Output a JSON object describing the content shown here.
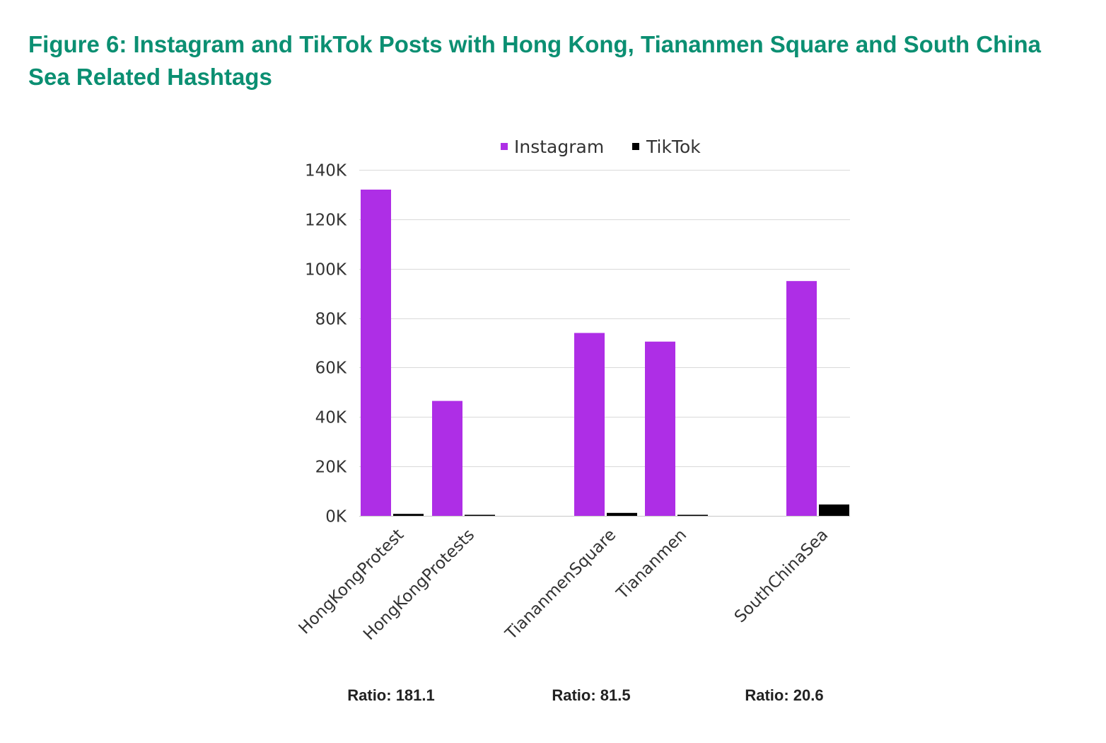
{
  "figure": {
    "title": "Figure 6: Instagram and TikTok Posts with Hong Kong, Tiananmen Square and South China Sea Related Hashtags"
  },
  "chart_data": {
    "type": "bar",
    "categories": [
      "HongKongProtest",
      "HongKongProtests",
      "TiananmenSquare",
      "Tiananmen",
      "SouthChinaSea"
    ],
    "series": [
      {
        "name": "Instagram",
        "color": "#ae2ee6",
        "values": [
          132000,
          46500,
          74000,
          70500,
          95000
        ]
      },
      {
        "name": "TikTok",
        "color": "#000000",
        "values": [
          800,
          150,
          1200,
          400,
          4600
        ]
      }
    ],
    "y_ticks": [
      {
        "value": 0,
        "label": "0K"
      },
      {
        "value": 20000,
        "label": "20K"
      },
      {
        "value": 40000,
        "label": "40K"
      },
      {
        "value": 60000,
        "label": "60K"
      },
      {
        "value": 80000,
        "label": "80K"
      },
      {
        "value": 100000,
        "label": "100K"
      },
      {
        "value": 120000,
        "label": "120K"
      },
      {
        "value": 140000,
        "label": "140K"
      }
    ],
    "ylim": [
      0,
      140000
    ],
    "grid": true,
    "legend_position": "top",
    "ratios": [
      "Ratio: 181.1",
      "Ratio: 81.5",
      "Ratio: 20.6"
    ]
  }
}
